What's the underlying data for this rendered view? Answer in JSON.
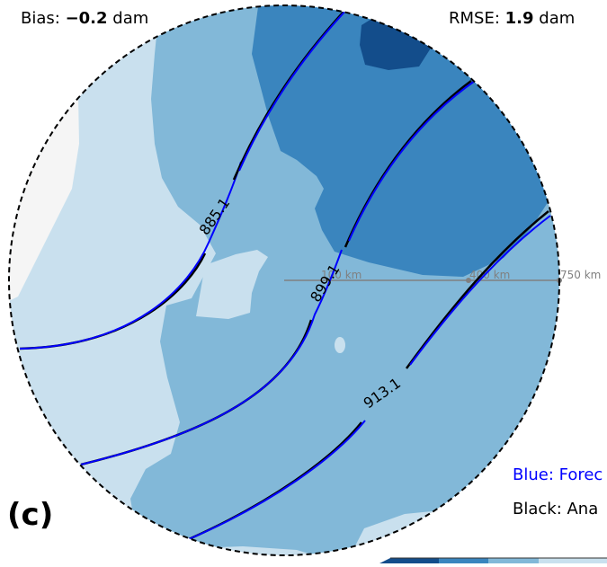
{
  "panel_label": "(c)",
  "stats": {
    "bias_label": "Bias:",
    "bias_value": "−0.2",
    "bias_unit": "dam",
    "rmse_label": "RMSE:",
    "rmse_value": "1.9",
    "rmse_unit": "dam"
  },
  "legend": {
    "blue_label": "Blue: Forec",
    "black_label": "Black: Ana"
  },
  "range_rings": [
    "100 km",
    "400 km",
    "750 km"
  ],
  "contours": [
    {
      "name": "contour-885",
      "label": "885.1"
    },
    {
      "name": "contour-899",
      "label": "899.1"
    },
    {
      "name": "contour-913",
      "label": "913.1"
    }
  ],
  "colors": {
    "forecast_line": "#0000ff",
    "analysis_line": "#000000",
    "fill_lightest": "#f5f5f5",
    "fill_light": "#c9e0ee",
    "fill_mid": "#82b8d8",
    "fill_dark": "#3a85be",
    "fill_darkest": "#134d8b",
    "range_line": "#808080"
  }
}
